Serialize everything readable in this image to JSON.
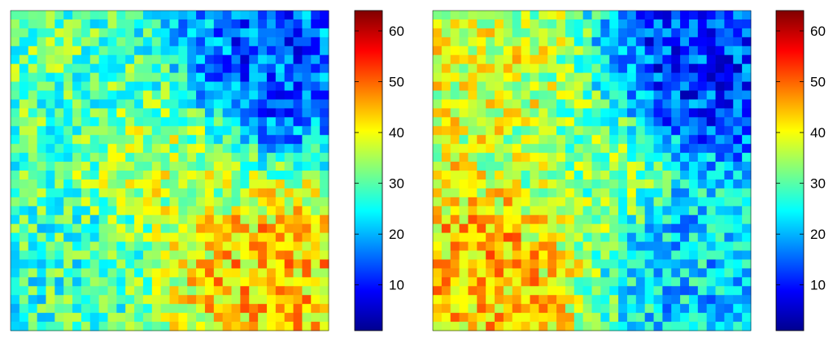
{
  "chart_data": [
    {
      "type": "heatmap",
      "title": "",
      "xlabel": "",
      "ylabel": "",
      "colormap": "jet",
      "color_range": [
        1,
        64
      ],
      "grid": false,
      "axes_visible": false,
      "colorbar": {
        "position": "right",
        "ticks": [
          10,
          20,
          30,
          40,
          50,
          60
        ],
        "tick_labels": [
          "10",
          "20",
          "30",
          "40",
          "50",
          "60"
        ]
      },
      "grid_size": [
        36,
        36
      ],
      "region_means": [
        {
          "region": "top-left",
          "value": 30
        },
        {
          "region": "top-right",
          "value": 14
        },
        {
          "region": "bottom-left",
          "value": 28
        },
        {
          "region": "bottom-right",
          "value": 44
        },
        {
          "region": "center",
          "value": 36
        }
      ]
    },
    {
      "type": "heatmap",
      "title": "",
      "xlabel": "",
      "ylabel": "",
      "colormap": "jet",
      "color_range": [
        1,
        64
      ],
      "grid": false,
      "axes_visible": false,
      "colorbar": {
        "position": "right",
        "ticks": [
          10,
          20,
          30,
          40,
          50,
          60
        ],
        "tick_labels": [
          "10",
          "20",
          "30",
          "40",
          "50",
          "60"
        ]
      },
      "grid_size": [
        36,
        36
      ],
      "region_means": [
        {
          "region": "top-left",
          "value": 38
        },
        {
          "region": "top-right",
          "value": 12
        },
        {
          "region": "bottom-left",
          "value": 44
        },
        {
          "region": "bottom-right",
          "value": 22
        },
        {
          "region": "center",
          "value": 33
        }
      ]
    }
  ]
}
